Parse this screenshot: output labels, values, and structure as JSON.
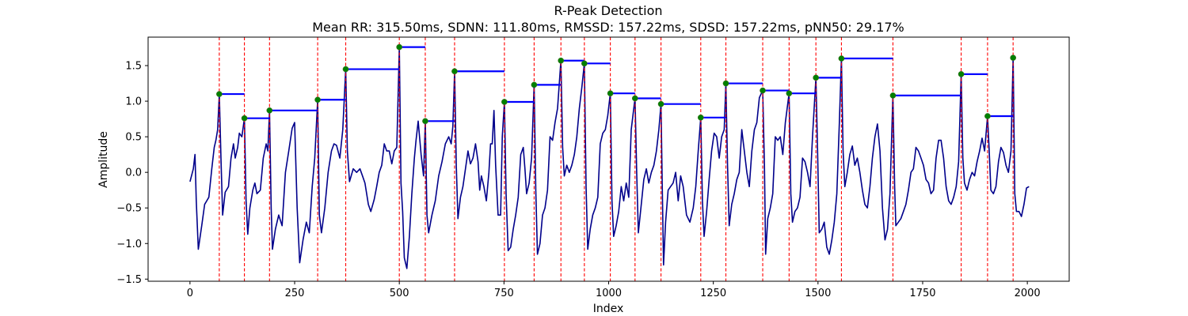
{
  "chart_data": {
    "type": "line",
    "title": "R-Peak Detection",
    "subtitle": "Mean RR: 315.50ms, SDNN: 111.80ms, RMSSD: 157.22ms, SDSD: 157.22ms, pNN50: 29.17%",
    "xlabel": "Index",
    "ylabel": "Amplitude",
    "xlim": [
      -100,
      2100
    ],
    "ylim": [
      -1.53,
      1.9
    ],
    "xticks": [
      0,
      250,
      500,
      750,
      1000,
      1250,
      1500,
      1750,
      2000
    ],
    "xtick_labels": [
      "0",
      "250",
      "500",
      "750",
      "1000",
      "1250",
      "1500",
      "1750",
      "2000"
    ],
    "yticks": [
      -1.5,
      -1.0,
      -0.5,
      0.0,
      0.5,
      1.0,
      1.5
    ],
    "ytick_labels": [
      "−1.5",
      "−1.0",
      "−0.5",
      "0.0",
      "0.5",
      "1.0",
      "1.5"
    ],
    "colors": {
      "signal": "#00008b",
      "peak_line": "#ff0000",
      "rr_bar": "#0000ff",
      "peak_marker": "#008000"
    },
    "signal_points": [
      [
        0,
        -0.13
      ],
      [
        8,
        0.05
      ],
      [
        12,
        0.25
      ],
      [
        15,
        -0.4
      ],
      [
        20,
        -1.08
      ],
      [
        28,
        -0.75
      ],
      [
        35,
        -0.45
      ],
      [
        45,
        -0.35
      ],
      [
        52,
        0.05
      ],
      [
        58,
        0.35
      ],
      [
        62,
        0.45
      ],
      [
        66,
        0.6
      ],
      [
        70,
        1.1
      ],
      [
        74,
        0.2
      ],
      [
        78,
        -0.6
      ],
      [
        84,
        -0.28
      ],
      [
        92,
        -0.2
      ],
      [
        98,
        0.2
      ],
      [
        104,
        0.4
      ],
      [
        108,
        0.2
      ],
      [
        114,
        0.35
      ],
      [
        118,
        0.55
      ],
      [
        124,
        0.5
      ],
      [
        130,
        0.76
      ],
      [
        134,
        -0.4
      ],
      [
        138,
        -0.87
      ],
      [
        143,
        -0.5
      ],
      [
        150,
        -0.25
      ],
      [
        155,
        -0.15
      ],
      [
        160,
        -0.3
      ],
      [
        168,
        -0.25
      ],
      [
        175,
        0.2
      ],
      [
        182,
        0.4
      ],
      [
        186,
        0.3
      ],
      [
        190,
        0.87
      ],
      [
        194,
        -0.5
      ],
      [
        197,
        -1.08
      ],
      [
        204,
        -0.8
      ],
      [
        212,
        -0.6
      ],
      [
        220,
        -0.75
      ],
      [
        228,
        0.0
      ],
      [
        236,
        0.3
      ],
      [
        244,
        0.62
      ],
      [
        250,
        0.7
      ],
      [
        256,
        -0.5
      ],
      [
        262,
        -1.27
      ],
      [
        270,
        -0.95
      ],
      [
        278,
        -0.7
      ],
      [
        285,
        -0.85
      ],
      [
        292,
        -0.2
      ],
      [
        298,
        0.2
      ],
      [
        305,
        1.02
      ],
      [
        309,
        -0.6
      ],
      [
        314,
        -0.85
      ],
      [
        322,
        -0.5
      ],
      [
        330,
        0.0
      ],
      [
        338,
        0.3
      ],
      [
        344,
        0.4
      ],
      [
        350,
        0.38
      ],
      [
        358,
        0.2
      ],
      [
        365,
        0.6
      ],
      [
        372,
        1.45
      ],
      [
        376,
        0.3
      ],
      [
        381,
        -0.13
      ],
      [
        390,
        0.05
      ],
      [
        398,
        0.0
      ],
      [
        406,
        0.05
      ],
      [
        412,
        -0.05
      ],
      [
        418,
        -0.15
      ],
      [
        426,
        -0.45
      ],
      [
        432,
        -0.55
      ],
      [
        440,
        -0.38
      ],
      [
        446,
        -0.2
      ],
      [
        452,
        0.0
      ],
      [
        458,
        0.1
      ],
      [
        464,
        0.4
      ],
      [
        470,
        0.3
      ],
      [
        476,
        0.3
      ],
      [
        482,
        0.12
      ],
      [
        488,
        0.3
      ],
      [
        494,
        0.35
      ],
      [
        500,
        1.76
      ],
      [
        504,
        -0.15
      ],
      [
        508,
        -0.55
      ],
      [
        512,
        -1.2
      ],
      [
        518,
        -1.35
      ],
      [
        524,
        -0.9
      ],
      [
        530,
        -0.3
      ],
      [
        536,
        0.2
      ],
      [
        540,
        0.45
      ],
      [
        545,
        0.72
      ],
      [
        552,
        0.25
      ],
      [
        558,
        -0.05
      ],
      [
        562,
        0.72
      ],
      [
        566,
        -0.6
      ],
      [
        570,
        -0.85
      ],
      [
        578,
        -0.6
      ],
      [
        586,
        -0.4
      ],
      [
        594,
        -0.05
      ],
      [
        602,
        0.15
      ],
      [
        610,
        0.4
      ],
      [
        618,
        0.5
      ],
      [
        624,
        0.4
      ],
      [
        628,
        0.65
      ],
      [
        632,
        1.42
      ],
      [
        636,
        0.1
      ],
      [
        640,
        -0.65
      ],
      [
        646,
        -0.35
      ],
      [
        652,
        -0.2
      ],
      [
        658,
        0.05
      ],
      [
        664,
        0.3
      ],
      [
        670,
        0.12
      ],
      [
        676,
        0.2
      ],
      [
        682,
        0.4
      ],
      [
        688,
        0.15
      ],
      [
        692,
        -0.25
      ],
      [
        696,
        -0.05
      ],
      [
        702,
        -0.2
      ],
      [
        708,
        -0.4
      ],
      [
        714,
        0.0
      ],
      [
        718,
        0.4
      ],
      [
        722,
        0.4
      ],
      [
        726,
        0.87
      ],
      [
        730,
        0.1
      ],
      [
        736,
        -0.6
      ],
      [
        742,
        -0.6
      ],
      [
        746,
        0.5
      ],
      [
        751,
        0.99
      ],
      [
        755,
        -0.3
      ],
      [
        760,
        -1.1
      ],
      [
        766,
        -1.05
      ],
      [
        772,
        -0.8
      ],
      [
        778,
        -0.6
      ],
      [
        784,
        -0.35
      ],
      [
        790,
        0.25
      ],
      [
        796,
        0.35
      ],
      [
        800,
        0.05
      ],
      [
        804,
        -0.3
      ],
      [
        810,
        -0.15
      ],
      [
        816,
        0.2
      ],
      [
        822,
        1.23
      ],
      [
        826,
        -0.25
      ],
      [
        830,
        -1.15
      ],
      [
        836,
        -1.0
      ],
      [
        842,
        -0.6
      ],
      [
        848,
        -0.5
      ],
      [
        854,
        -0.25
      ],
      [
        860,
        0.5
      ],
      [
        866,
        0.45
      ],
      [
        872,
        0.7
      ],
      [
        878,
        0.9
      ],
      [
        886,
        1.57
      ],
      [
        890,
        0.35
      ],
      [
        894,
        -0.05
      ],
      [
        900,
        0.1
      ],
      [
        906,
        0.0
      ],
      [
        912,
        0.1
      ],
      [
        918,
        0.25
      ],
      [
        924,
        0.5
      ],
      [
        930,
        0.9
      ],
      [
        936,
        1.2
      ],
      [
        942,
        1.53
      ],
      [
        946,
        -0.2
      ],
      [
        950,
        -1.08
      ],
      [
        956,
        -0.8
      ],
      [
        962,
        -0.6
      ],
      [
        968,
        -0.5
      ],
      [
        974,
        -0.35
      ],
      [
        980,
        0.4
      ],
      [
        986,
        0.55
      ],
      [
        992,
        0.6
      ],
      [
        998,
        0.8
      ],
      [
        1004,
        1.11
      ],
      [
        1008,
        -0.4
      ],
      [
        1012,
        -0.9
      ],
      [
        1018,
        -0.75
      ],
      [
        1024,
        -0.55
      ],
      [
        1030,
        -0.2
      ],
      [
        1036,
        -0.4
      ],
      [
        1042,
        -0.15
      ],
      [
        1048,
        -0.35
      ],
      [
        1054,
        0.6
      ],
      [
        1059,
        0.85
      ],
      [
        1063,
        1.04
      ],
      [
        1067,
        0.0
      ],
      [
        1071,
        -0.85
      ],
      [
        1078,
        -0.45
      ],
      [
        1084,
        -0.1
      ],
      [
        1090,
        0.05
      ],
      [
        1096,
        -0.15
      ],
      [
        1102,
        0.0
      ],
      [
        1108,
        0.1
      ],
      [
        1114,
        0.3
      ],
      [
        1120,
        0.6
      ],
      [
        1125,
        0.96
      ],
      [
        1128,
        -0.2
      ],
      [
        1131,
        -1.3
      ],
      [
        1136,
        -0.7
      ],
      [
        1142,
        -0.25
      ],
      [
        1148,
        -0.2
      ],
      [
        1154,
        -0.15
      ],
      [
        1160,
        0.0
      ],
      [
        1166,
        -0.4
      ],
      [
        1172,
        -0.05
      ],
      [
        1178,
        -0.2
      ],
      [
        1186,
        -0.6
      ],
      [
        1194,
        -0.7
      ],
      [
        1202,
        -0.5
      ],
      [
        1208,
        -0.2
      ],
      [
        1214,
        0.3
      ],
      [
        1220,
        0.77
      ],
      [
        1224,
        -0.4
      ],
      [
        1228,
        -0.9
      ],
      [
        1234,
        -0.55
      ],
      [
        1240,
        -0.1
      ],
      [
        1246,
        0.3
      ],
      [
        1252,
        0.55
      ],
      [
        1258,
        0.5
      ],
      [
        1264,
        0.2
      ],
      [
        1270,
        0.5
      ],
      [
        1276,
        0.6
      ],
      [
        1280,
        1.25
      ],
      [
        1284,
        0.1
      ],
      [
        1288,
        -0.75
      ],
      [
        1294,
        -0.45
      ],
      [
        1300,
        -0.3
      ],
      [
        1306,
        -0.1
      ],
      [
        1312,
        0.0
      ],
      [
        1318,
        0.6
      ],
      [
        1324,
        0.3
      ],
      [
        1330,
        0.0
      ],
      [
        1336,
        -0.2
      ],
      [
        1342,
        0.3
      ],
      [
        1348,
        0.6
      ],
      [
        1354,
        0.7
      ],
      [
        1360,
        1.05
      ],
      [
        1368,
        1.15
      ],
      [
        1372,
        0.1
      ],
      [
        1375,
        -1.15
      ],
      [
        1380,
        -0.65
      ],
      [
        1386,
        -0.5
      ],
      [
        1392,
        -0.3
      ],
      [
        1398,
        0.5
      ],
      [
        1404,
        0.45
      ],
      [
        1410,
        0.5
      ],
      [
        1416,
        0.25
      ],
      [
        1422,
        0.7
      ],
      [
        1431,
        1.11
      ],
      [
        1435,
        -0.3
      ],
      [
        1439,
        -0.7
      ],
      [
        1445,
        -0.55
      ],
      [
        1451,
        -0.5
      ],
      [
        1457,
        -0.35
      ],
      [
        1463,
        0.2
      ],
      [
        1469,
        0.15
      ],
      [
        1475,
        0.0
      ],
      [
        1481,
        -0.2
      ],
      [
        1487,
        0.5
      ],
      [
        1495,
        1.33
      ],
      [
        1499,
        0.3
      ],
      [
        1503,
        -0.85
      ],
      [
        1509,
        -0.8
      ],
      [
        1515,
        -0.7
      ],
      [
        1521,
        -1.05
      ],
      [
        1527,
        -1.15
      ],
      [
        1533,
        -0.95
      ],
      [
        1539,
        -0.7
      ],
      [
        1545,
        -0.3
      ],
      [
        1551,
        0.7
      ],
      [
        1556,
        1.6
      ],
      [
        1560,
        0.3
      ],
      [
        1564,
        -0.2
      ],
      [
        1570,
        0.0
      ],
      [
        1576,
        0.25
      ],
      [
        1582,
        0.37
      ],
      [
        1588,
        0.1
      ],
      [
        1594,
        0.2
      ],
      [
        1600,
        0.0
      ],
      [
        1606,
        -0.25
      ],
      [
        1612,
        -0.45
      ],
      [
        1618,
        -0.5
      ],
      [
        1624,
        -0.2
      ],
      [
        1630,
        0.2
      ],
      [
        1636,
        0.5
      ],
      [
        1642,
        0.68
      ],
      [
        1648,
        0.3
      ],
      [
        1654,
        -0.5
      ],
      [
        1660,
        -0.95
      ],
      [
        1666,
        -0.8
      ],
      [
        1672,
        -0.3
      ],
      [
        1679,
        1.08
      ],
      [
        1683,
        -0.2
      ],
      [
        1686,
        -0.75
      ],
      [
        1692,
        -0.7
      ],
      [
        1698,
        -0.65
      ],
      [
        1704,
        -0.55
      ],
      [
        1710,
        -0.45
      ],
      [
        1716,
        -0.25
      ],
      [
        1722,
        0.0
      ],
      [
        1728,
        0.05
      ],
      [
        1734,
        0.35
      ],
      [
        1740,
        0.3
      ],
      [
        1746,
        0.2
      ],
      [
        1752,
        0.1
      ],
      [
        1758,
        -0.1
      ],
      [
        1764,
        -0.15
      ],
      [
        1770,
        -0.3
      ],
      [
        1776,
        -0.25
      ],
      [
        1782,
        0.2
      ],
      [
        1788,
        0.45
      ],
      [
        1794,
        0.45
      ],
      [
        1800,
        0.2
      ],
      [
        1806,
        -0.2
      ],
      [
        1812,
        -0.4
      ],
      [
        1818,
        -0.45
      ],
      [
        1824,
        -0.35
      ],
      [
        1830,
        -0.2
      ],
      [
        1836,
        0.15
      ],
      [
        1842,
        1.38
      ],
      [
        1846,
        0.2
      ],
      [
        1850,
        -0.15
      ],
      [
        1856,
        -0.25
      ],
      [
        1862,
        -0.1
      ],
      [
        1868,
        0.0
      ],
      [
        1874,
        -0.05
      ],
      [
        1880,
        0.15
      ],
      [
        1886,
        0.3
      ],
      [
        1892,
        0.48
      ],
      [
        1898,
        0.3
      ],
      [
        1905,
        0.79
      ],
      [
        1909,
        0.3
      ],
      [
        1913,
        -0.25
      ],
      [
        1919,
        -0.3
      ],
      [
        1925,
        -0.2
      ],
      [
        1931,
        0.15
      ],
      [
        1937,
        0.35
      ],
      [
        1943,
        0.28
      ],
      [
        1949,
        0.1
      ],
      [
        1955,
        0.0
      ],
      [
        1961,
        0.3
      ],
      [
        1966,
        1.61
      ],
      [
        1970,
        -0.3
      ],
      [
        1974,
        -0.55
      ],
      [
        1980,
        -0.55
      ],
      [
        1986,
        -0.62
      ],
      [
        1992,
        -0.45
      ],
      [
        1998,
        -0.22
      ],
      [
        2004,
        -0.2
      ]
    ],
    "peaks": [
      {
        "x": 70,
        "y": 1.1,
        "next_x": 130
      },
      {
        "x": 130,
        "y": 0.76,
        "next_x": 190
      },
      {
        "x": 190,
        "y": 0.87,
        "next_x": 305
      },
      {
        "x": 305,
        "y": 1.02,
        "next_x": 372
      },
      {
        "x": 372,
        "y": 1.45,
        "next_x": 500
      },
      {
        "x": 500,
        "y": 1.76,
        "next_x": 562
      },
      {
        "x": 562,
        "y": 0.72,
        "next_x": 632
      },
      {
        "x": 632,
        "y": 1.42,
        "next_x": 751
      },
      {
        "x": 751,
        "y": 0.99,
        "next_x": 822
      },
      {
        "x": 822,
        "y": 1.23,
        "next_x": 886
      },
      {
        "x": 886,
        "y": 1.57,
        "next_x": 942
      },
      {
        "x": 942,
        "y": 1.53,
        "next_x": 1004
      },
      {
        "x": 1004,
        "y": 1.11,
        "next_x": 1063
      },
      {
        "x": 1063,
        "y": 1.04,
        "next_x": 1125
      },
      {
        "x": 1125,
        "y": 0.96,
        "next_x": 1220
      },
      {
        "x": 1220,
        "y": 0.77,
        "next_x": 1280
      },
      {
        "x": 1280,
        "y": 1.25,
        "next_x": 1368
      },
      {
        "x": 1368,
        "y": 1.15,
        "next_x": 1431
      },
      {
        "x": 1431,
        "y": 1.11,
        "next_x": 1495
      },
      {
        "x": 1495,
        "y": 1.33,
        "next_x": 1556
      },
      {
        "x": 1556,
        "y": 1.6,
        "next_x": 1679
      },
      {
        "x": 1679,
        "y": 1.08,
        "next_x": 1842
      },
      {
        "x": 1842,
        "y": 1.38,
        "next_x": 1905
      },
      {
        "x": 1905,
        "y": 0.79,
        "next_x": 1966
      },
      {
        "x": 1966,
        "y": 1.61,
        "next_x": null
      }
    ]
  }
}
